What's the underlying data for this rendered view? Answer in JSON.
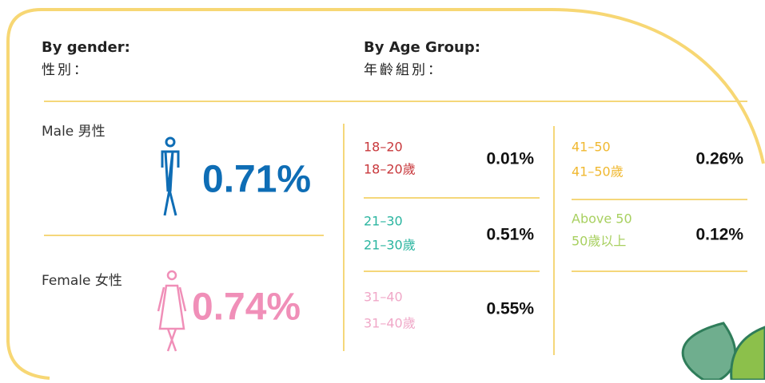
{
  "gender": {
    "title": "By gender:",
    "title_zh": "性別：",
    "items": [
      {
        "label": "Male 男性",
        "value": "0.71%",
        "color": "#0e6db5"
      },
      {
        "label": "Female 女性",
        "value": "0.74%",
        "color": "#f08fb8"
      }
    ]
  },
  "age": {
    "title": "By Age Group:",
    "title_zh": "年齡組別：",
    "groups": [
      {
        "label": "18–20",
        "label_zh": "18–20歲",
        "value": "0.01%",
        "color": "#c8383c"
      },
      {
        "label": "21–30",
        "label_zh": "21–30歲",
        "value": "0.51%",
        "color": "#2bb5a0"
      },
      {
        "label": "31–40",
        "label_zh": "31–40歲",
        "value": "0.55%",
        "color": "#f0a8c8"
      },
      {
        "label": "41–50",
        "label_zh": "41–50歲",
        "value": "0.26%",
        "color": "#f0b830"
      },
      {
        "label": "Above 50",
        "label_zh": "50歲以上",
        "value": "0.12%",
        "color": "#a8d060"
      }
    ]
  }
}
